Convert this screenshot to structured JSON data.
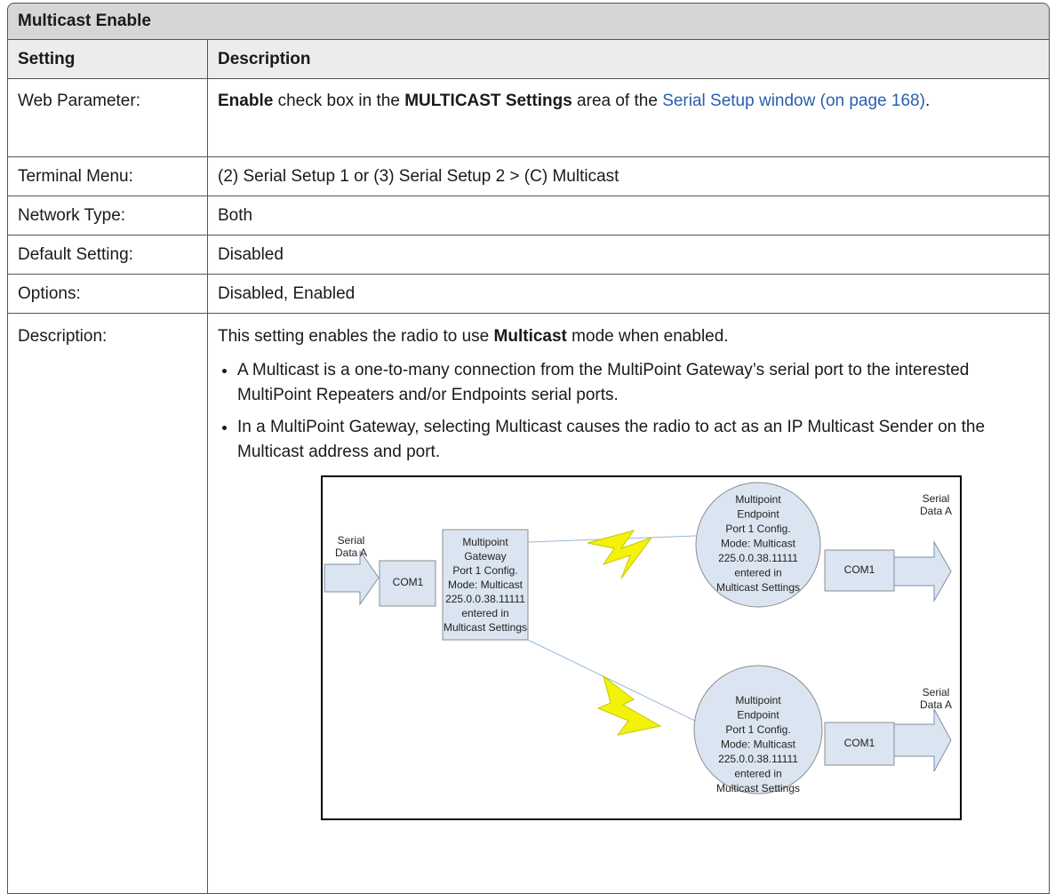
{
  "table": {
    "title": "Multicast Enable",
    "header": [
      "Setting",
      "Description"
    ],
    "rows": [
      {
        "setting": "Web Parameter:",
        "description": [
          "Enable",
          " check box in the ",
          "MULTICAST Settings",
          " area of the ",
          "Serial Setup window (on page 168)",
          "."
        ]
      },
      {
        "setting": "Terminal Menu:",
        "description": [
          "(2) Serial Setup 1 or (3) Serial Setup 2 > (C) Multicast"
        ]
      },
      {
        "setting": "Network Type:",
        "description": [
          "Both"
        ]
      },
      {
        "setting": "Default Setting:",
        "description": [
          "Disabled"
        ]
      },
      {
        "setting": "Options:",
        "description": [
          "Disabled, Enabled"
        ]
      },
      {
        "setting": "Description:",
        "description": [
          "This setting enables the radio to use ",
          "Multicast",
          " mode when enabled."
        ],
        "bullets": [
          "A Multicast is a one-to-many connection from the MultiPoint Gateway’s serial port to the interested MultiPoint Repeaters and/or Endpoints serial ports.",
          "In a MultiPoint Gateway, selecting Multicast causes the radio to act as an IP Multicast Sender on the Multicast address and port."
        ]
      }
    ]
  },
  "diagram": {
    "input_label": [
      "Serial",
      "Data A"
    ],
    "gateway_port": "COM1",
    "gateway": [
      "Multipoint",
      "Gateway",
      "Port 1 Config.",
      "Mode: Multicast",
      "225.0.0.38.11111",
      "entered in",
      "Multicast Settings"
    ],
    "endpoints": [
      {
        "lines": [
          "Multipoint",
          "Endpoint",
          "Port 1 Config.",
          "Mode: Multicast",
          "225.0.0.38.11111",
          "entered in",
          "Multicast Settings"
        ],
        "port": "COM1",
        "output_label": [
          "Serial",
          "Data A"
        ]
      },
      {
        "lines": [
          "Multipoint",
          "Endpoint",
          "Port 1 Config.",
          "Mode: Multicast",
          "225.0.0.38.11111",
          "entered in",
          "Multicast Settings"
        ],
        "port": "COM1",
        "output_label": [
          "Serial",
          "Data A"
        ]
      }
    ]
  }
}
